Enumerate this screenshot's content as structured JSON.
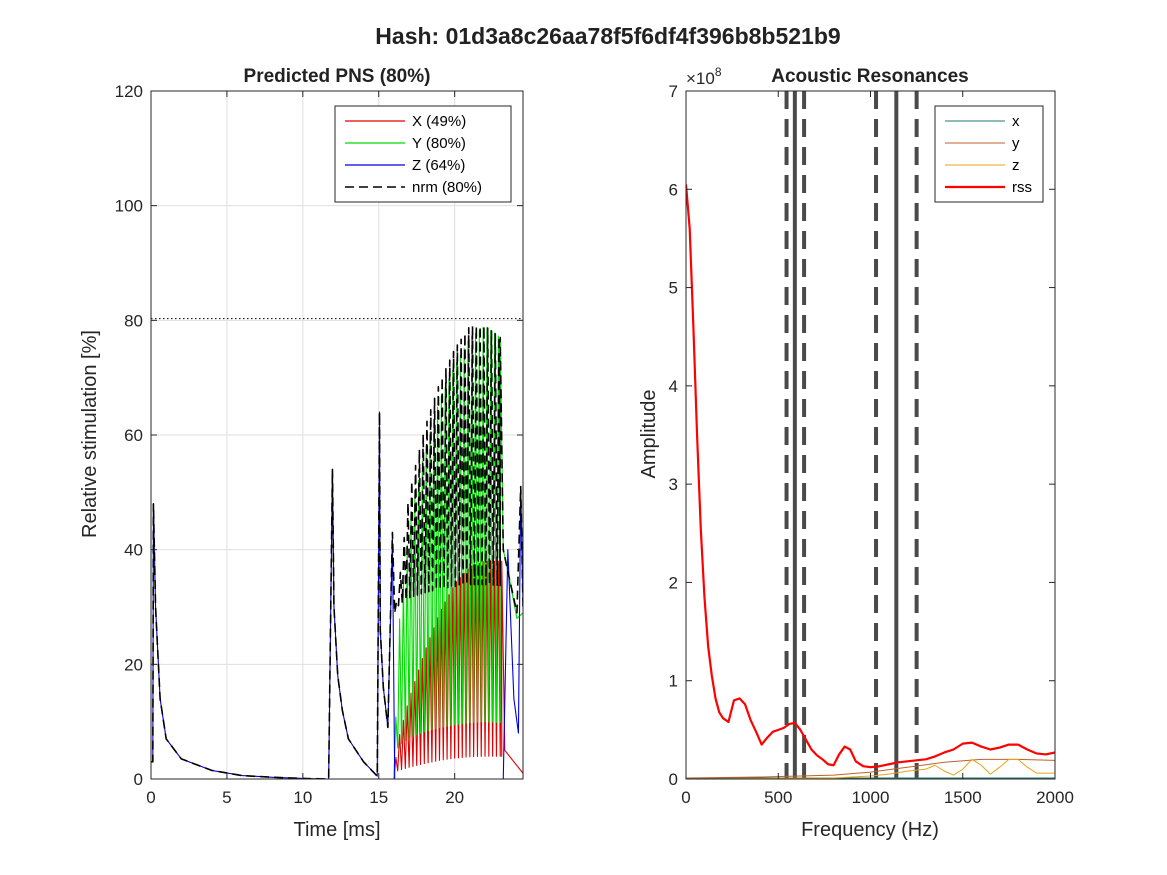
{
  "figure": {
    "suptitle": "Hash: 01d3a8c26aa78f5f6df4f396b8b521b9"
  },
  "chart_data": [
    {
      "type": "line",
      "title": "Predicted PNS (80%)",
      "xlabel": "Time [ms]",
      "ylabel": "Relative stimulation [%]",
      "xlim": [
        0,
        24.5
      ],
      "ylim": [
        0,
        120
      ],
      "xticks": [
        "0",
        "5",
        "10",
        "15",
        "20"
      ],
      "yticks": [
        "0",
        "20",
        "40",
        "60",
        "80",
        "100",
        "120"
      ],
      "grid": true,
      "legend_position": "top-right",
      "threshold_line": {
        "y": 80.3,
        "style": "dotted",
        "color": "#000000"
      },
      "series": [
        {
          "name": "X (49%)",
          "color": "#e00000",
          "x": [
            0,
            16.0,
            16.2,
            17,
            18,
            19,
            20,
            21,
            22,
            23.1,
            23.3,
            24.5
          ],
          "y": [
            0,
            0,
            6,
            14,
            22,
            29,
            34,
            37,
            38,
            38,
            5,
            1
          ],
          "osc": {
            "from": 16.0,
            "to": 23.1,
            "period": 0.25,
            "low": 1
          }
        },
        {
          "name": "Y (80%)",
          "color": "#00dc00",
          "x": [
            0,
            16.0,
            16.3,
            17,
            18,
            19,
            20,
            21,
            22,
            23.0,
            23.2,
            23.6,
            24.1,
            24.5
          ],
          "y": [
            0,
            0,
            26,
            44,
            57,
            66,
            72,
            77,
            79,
            77,
            40,
            35,
            28,
            29
          ],
          "osc": {
            "from": 16.0,
            "to": 23.0,
            "period": 0.25,
            "low": 4
          }
        },
        {
          "name": "Z (64%)",
          "color": "#0000e0",
          "x": [
            0,
            0.12,
            0.16,
            0.3,
            0.6,
            1.0,
            2,
            4,
            6,
            8,
            10,
            11.7,
            11.95,
            12.05,
            12.3,
            12.6,
            13.0,
            14.0,
            14.9,
            15.05,
            15.1,
            15.3,
            15.6,
            15.9,
            16.05,
            23.2,
            23.5,
            23.9,
            24.2,
            24.35,
            24.5
          ],
          "y": [
            3,
            3,
            48,
            30,
            14,
            7,
            3.5,
            1.5,
            0.6,
            0.3,
            0.1,
            0,
            54,
            30,
            18,
            12,
            7,
            3,
            0.5,
            64,
            26,
            16,
            9,
            42,
            0,
            0,
            40,
            14,
            8,
            51,
            30
          ]
        },
        {
          "name": "nrm (80%)",
          "color": "#000000",
          "dash": true,
          "x": [
            0,
            0.12,
            0.16,
            0.3,
            0.6,
            1.0,
            2,
            4,
            6,
            8,
            10,
            11.7,
            11.95,
            12.05,
            12.3,
            12.6,
            13.0,
            14.0,
            14.9,
            15.05,
            15.1,
            15.3,
            15.6,
            15.9,
            16.05,
            16.3,
            17,
            18,
            19,
            20,
            21,
            22,
            23.0,
            23.2,
            23.6,
            24.1,
            24.35,
            24.5
          ],
          "y": [
            3,
            3,
            48,
            30,
            14,
            7,
            3.5,
            1.5,
            0.6,
            0.3,
            0.1,
            0,
            54,
            30,
            18,
            12,
            7,
            3,
            0.5,
            64,
            26,
            16,
            9,
            43,
            29,
            33,
            50,
            61,
            69,
            75,
            79,
            79,
            77,
            40,
            35,
            29,
            51,
            30
          ],
          "osc": {
            "from": 16.05,
            "to": 23.0,
            "period": 0.25,
            "low": 30
          }
        }
      ]
    },
    {
      "type": "line",
      "title": "Acoustic Resonances",
      "xlabel": "Frequency (Hz)",
      "ylabel": "Amplitude",
      "y_exponent": "×10^8",
      "y_exponent_base": "×10",
      "y_exponent_power": "8",
      "xlim": [
        0,
        2000
      ],
      "ylim": [
        0,
        7
      ],
      "xticks": [
        "0",
        "500",
        "1000",
        "1500",
        "2000"
      ],
      "yticks": [
        "0",
        "1",
        "2",
        "3",
        "4",
        "5",
        "6",
        "7"
      ],
      "grid": false,
      "legend_position": "top-right",
      "resonance_lines": [
        {
          "x": 590,
          "style": "solid"
        },
        {
          "x": 545,
          "style": "dashed"
        },
        {
          "x": 640,
          "style": "dashed"
        },
        {
          "x": 1140,
          "style": "solid"
        },
        {
          "x": 1030,
          "style": "dashed"
        },
        {
          "x": 1250,
          "style": "dashed"
        }
      ],
      "series": [
        {
          "name": "x",
          "color": "#1f7a6e",
          "width": 1,
          "x": [
            0,
            500,
            1000,
            1500,
            2000
          ],
          "y": [
            0.01,
            0.01,
            0.01,
            0.01,
            0.01
          ]
        },
        {
          "name": "y",
          "color": "#c0602a",
          "width": 1,
          "x": [
            0,
            400,
            800,
            1000,
            1200,
            1400,
            1600,
            1800,
            2000
          ],
          "y": [
            0.01,
            0.02,
            0.04,
            0.07,
            0.12,
            0.17,
            0.2,
            0.2,
            0.19
          ]
        },
        {
          "name": "z",
          "color": "#e8a317",
          "width": 1,
          "x": [
            0,
            800,
            1000,
            1100,
            1200,
            1300,
            1350,
            1400,
            1450,
            1500,
            1550,
            1600,
            1650,
            1700,
            1750,
            1800,
            1850,
            1900,
            1950,
            2000
          ],
          "y": [
            0.0,
            0.01,
            0.03,
            0.05,
            0.08,
            0.1,
            0.14,
            0.08,
            0.04,
            0.1,
            0.2,
            0.14,
            0.05,
            0.12,
            0.2,
            0.2,
            0.12,
            0.06,
            0.06,
            0.06
          ]
        },
        {
          "name": "rss",
          "color": "#ff0000",
          "width": 2.2,
          "x": [
            0,
            20,
            40,
            60,
            80,
            100,
            120,
            140,
            160,
            180,
            200,
            230,
            260,
            290,
            320,
            350,
            380,
            410,
            440,
            470,
            500,
            530,
            560,
            590,
            620,
            650,
            680,
            710,
            740,
            770,
            800,
            830,
            860,
            890,
            920,
            960,
            1000,
            1050,
            1100,
            1150,
            1200,
            1250,
            1300,
            1350,
            1400,
            1450,
            1500,
            1550,
            1600,
            1650,
            1700,
            1750,
            1800,
            1850,
            1900,
            1950,
            2000
          ],
          "y": [
            6.05,
            5.6,
            4.6,
            3.5,
            2.55,
            1.85,
            1.35,
            1.05,
            0.82,
            0.68,
            0.62,
            0.58,
            0.8,
            0.82,
            0.76,
            0.6,
            0.48,
            0.35,
            0.42,
            0.48,
            0.5,
            0.52,
            0.56,
            0.57,
            0.5,
            0.4,
            0.3,
            0.24,
            0.2,
            0.15,
            0.14,
            0.25,
            0.33,
            0.3,
            0.18,
            0.13,
            0.12,
            0.13,
            0.15,
            0.17,
            0.18,
            0.19,
            0.2,
            0.23,
            0.27,
            0.3,
            0.36,
            0.37,
            0.33,
            0.3,
            0.32,
            0.35,
            0.35,
            0.3,
            0.26,
            0.25,
            0.27
          ]
        }
      ]
    }
  ]
}
